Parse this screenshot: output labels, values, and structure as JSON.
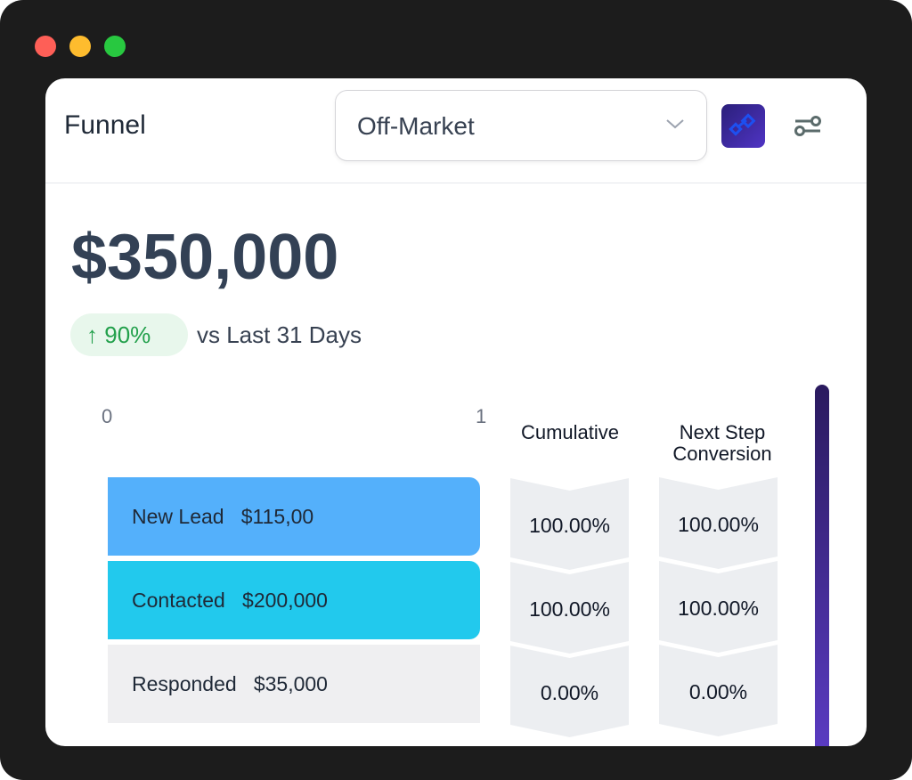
{
  "window": {
    "controls": [
      "close",
      "minimize",
      "maximize"
    ]
  },
  "header": {
    "title": "Funnel",
    "select_value": "Off-Market",
    "icons": [
      "app-logo-icon",
      "filter-settings-icon"
    ]
  },
  "summary": {
    "total": "$350,000",
    "change": "90%",
    "change_direction": "up",
    "comparison": "vs Last 31 Days"
  },
  "funnel": {
    "axis_min": "0",
    "axis_max": "1",
    "columns": {
      "cumulative": "Cumulative",
      "next_step": "Next Step Conversion"
    },
    "stages": [
      {
        "name": "New Lead",
        "value": "$115,00",
        "color": "#54b0fb",
        "cumulative": "100.00%",
        "next_step": "100.00%"
      },
      {
        "name": "Contacted",
        "value": "$200,000",
        "color": "#22c9ed",
        "cumulative": "100.00%",
        "next_step": "100.00%"
      },
      {
        "name": "Responded",
        "value": "$35,000",
        "color": "#efeff1",
        "cumulative": "0.00%",
        "next_step": "0.00%"
      }
    ]
  },
  "colors": {
    "accent": "#4f34c4",
    "positive": "#22a04b"
  }
}
